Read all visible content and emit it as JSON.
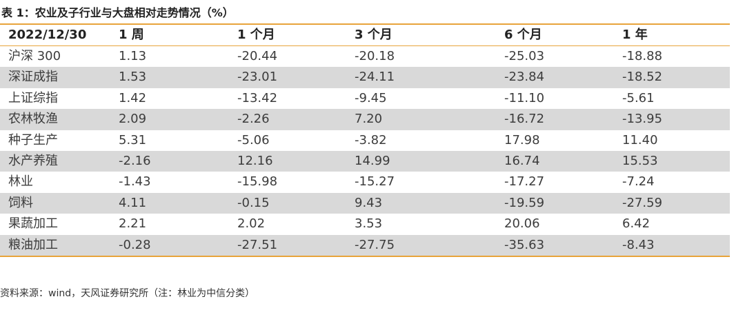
{
  "title": "表 1：农业及子行业与大盘相对走势情况（%）",
  "table": {
    "columns": [
      "2022/12/30",
      "1 周",
      "1 个月",
      "3 个月",
      "6 个月",
      "1 年"
    ],
    "rows": [
      [
        "沪深 300",
        "1.13",
        "-20.44",
        "-20.18",
        "-25.03",
        "-18.88"
      ],
      [
        "深证成指",
        "1.53",
        "-23.01",
        "-24.11",
        "-23.84",
        "-18.52"
      ],
      [
        "上证综指",
        "1.42",
        "-13.42",
        "-9.45",
        "-11.10",
        "-5.61"
      ],
      [
        "农林牧渔",
        "2.09",
        "-2.26",
        "7.20",
        "-16.72",
        "-13.95"
      ],
      [
        "种子生产",
        "5.31",
        "-5.06",
        "-3.82",
        "17.98",
        "11.40"
      ],
      [
        "水产养殖",
        "-2.16",
        "12.16",
        "14.99",
        "16.74",
        "15.53"
      ],
      [
        "林业",
        "-1.43",
        "-15.98",
        "-15.27",
        "-17.27",
        "-7.24"
      ],
      [
        "饲料",
        "4.11",
        "-0.15",
        "9.43",
        "-19.59",
        "-27.59"
      ],
      [
        "果蔬加工",
        "2.21",
        "2.02",
        "3.53",
        "20.06",
        "6.42"
      ],
      [
        "粮油加工",
        "-0.28",
        "-27.51",
        "-27.75",
        "-35.63",
        "-8.43"
      ]
    ]
  },
  "source": "资料来源：wind，天风证券研究所（注：林业为中信分类）",
  "colors": {
    "accent_rule": "#e8a33a",
    "shaded_row": "#d9d9d9"
  }
}
